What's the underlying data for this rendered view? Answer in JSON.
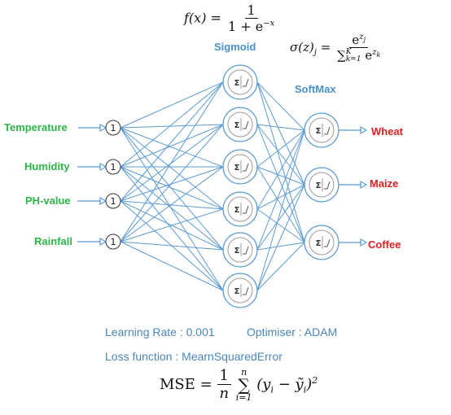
{
  "formulas": {
    "sigmoid": {
      "lhs": "f(x) =",
      "numerator": "1",
      "denominator_base": "1 + e",
      "denominator_exp": "−x"
    },
    "softmax": {
      "lhs_sigma": "σ(z)",
      "lhs_sub": "j",
      "eq": "=",
      "num_base": "e",
      "num_exp": "z",
      "num_exp_sub": "j",
      "den_sum": "∑",
      "den_sum_top": "K",
      "den_sum_bottom": "k=1",
      "den_base": "e",
      "den_exp": "z",
      "den_exp_sub": "k"
    },
    "mse": {
      "lhs": "MSE =",
      "frac_num": "1",
      "frac_den": "n",
      "sum": "∑",
      "sum_top": "n",
      "sum_bottom": "i=1",
      "body_open": "(y",
      "body_sub1": "i",
      "body_minus": " − ỹ",
      "body_sub2": "i",
      "body_close": ")",
      "body_exp": "2"
    }
  },
  "activations": {
    "hidden": "Sigmoid",
    "output": "SoftMax"
  },
  "network": {
    "inputs": [
      {
        "label": "Temperature",
        "node_text": "1"
      },
      {
        "label": "Humidity",
        "node_text": "1"
      },
      {
        "label": "PH-value",
        "node_text": "1"
      },
      {
        "label": "Rainfall",
        "node_text": "1"
      }
    ],
    "hidden_count": 6,
    "outputs": [
      {
        "label": "Wheat"
      },
      {
        "label": "Maize"
      },
      {
        "label": "Coffee"
      }
    ],
    "neuron_symbol": "Σ",
    "colors": {
      "edges": "#5b9bd5",
      "neuron_outline": "#5b9bd5",
      "input_label": "#2db34a",
      "output_label": "#e01e1e",
      "activation_label": "#4a90c9"
    }
  },
  "training": {
    "learning_rate": "Learning Rate : 0.001",
    "optimiser": "Optimiser : ADAM",
    "loss_function": "Loss function : MearnSquaredError"
  }
}
